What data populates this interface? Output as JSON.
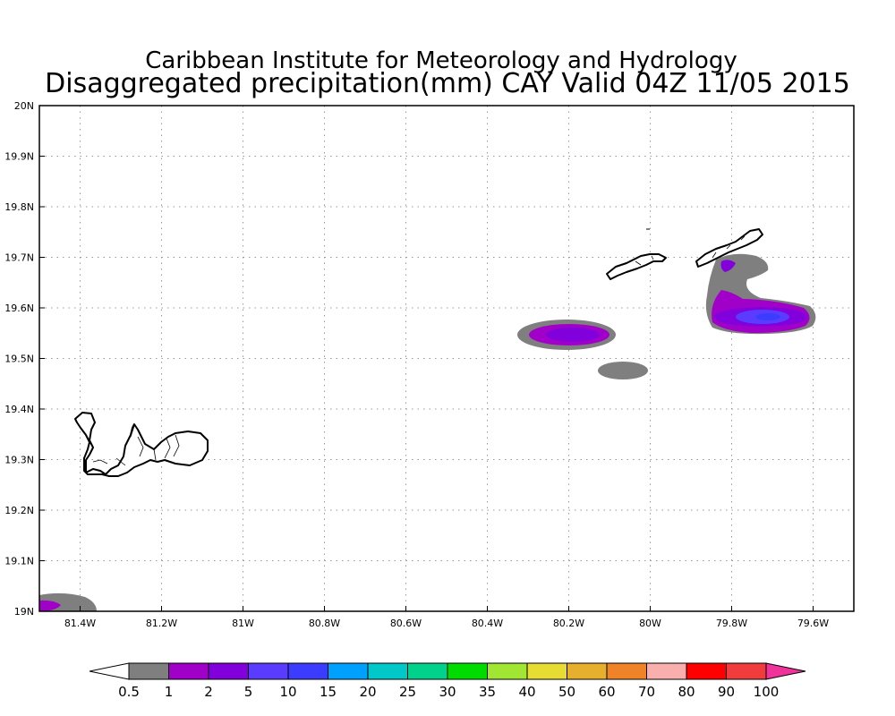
{
  "title": "Caribbean Institute for Meteorology and Hydrology",
  "subtitle": "Disaggregated precipitation(mm) CAY Valid 04Z 11/05 2015",
  "map": {
    "lon_range": [
      -81.5,
      -79.5
    ],
    "lat_range": [
      19.0,
      20.0
    ],
    "lon_ticks": [
      {
        "value": -81.4,
        "label": "81.4W"
      },
      {
        "value": -81.2,
        "label": "81.2W"
      },
      {
        "value": -81.0,
        "label": "81W"
      },
      {
        "value": -80.8,
        "label": "80.8W"
      },
      {
        "value": -80.6,
        "label": "80.6W"
      },
      {
        "value": -80.4,
        "label": "80.4W"
      },
      {
        "value": -80.2,
        "label": "80.2W"
      },
      {
        "value": -80.0,
        "label": "80W"
      },
      {
        "value": -79.8,
        "label": "79.8W"
      },
      {
        "value": -79.6,
        "label": "79.6W"
      }
    ],
    "lat_ticks": [
      {
        "value": 19.0,
        "label": "19N"
      },
      {
        "value": 19.1,
        "label": "19.1N"
      },
      {
        "value": 19.2,
        "label": "19.2N"
      },
      {
        "value": 19.3,
        "label": "19.3N"
      },
      {
        "value": 19.4,
        "label": "19.4N"
      },
      {
        "value": 19.5,
        "label": "19.5N"
      },
      {
        "value": 19.6,
        "label": "19.6N"
      },
      {
        "value": 19.7,
        "label": "19.7N"
      },
      {
        "value": 19.8,
        "label": "19.8N"
      },
      {
        "value": 19.9,
        "label": "19.9N"
      },
      {
        "value": 20.0,
        "label": "20N"
      }
    ],
    "grid": true,
    "colors": {
      "c0_5": "#7f7f7f",
      "c1": "#a000c8",
      "c2": "#8200dc",
      "c5": "#5a3cff",
      "c10": "#3c3cff"
    }
  },
  "colorbar": {
    "under_color": "#ffffff",
    "over_color": "#f0329b",
    "labels": [
      "0.5",
      "1",
      "2",
      "5",
      "10",
      "15",
      "20",
      "25",
      "30",
      "35",
      "40",
      "50",
      "60",
      "70",
      "80",
      "90",
      "100"
    ],
    "colors": [
      "#7f7f7f",
      "#a000c8",
      "#8200dc",
      "#5a3cff",
      "#3c3cff",
      "#00a0ff",
      "#00c8c8",
      "#00d28c",
      "#00dc00",
      "#a0e632",
      "#e6dc32",
      "#e6af2d",
      "#f08228",
      "#faafaf",
      "#ff0000",
      "#f03c3c"
    ]
  }
}
